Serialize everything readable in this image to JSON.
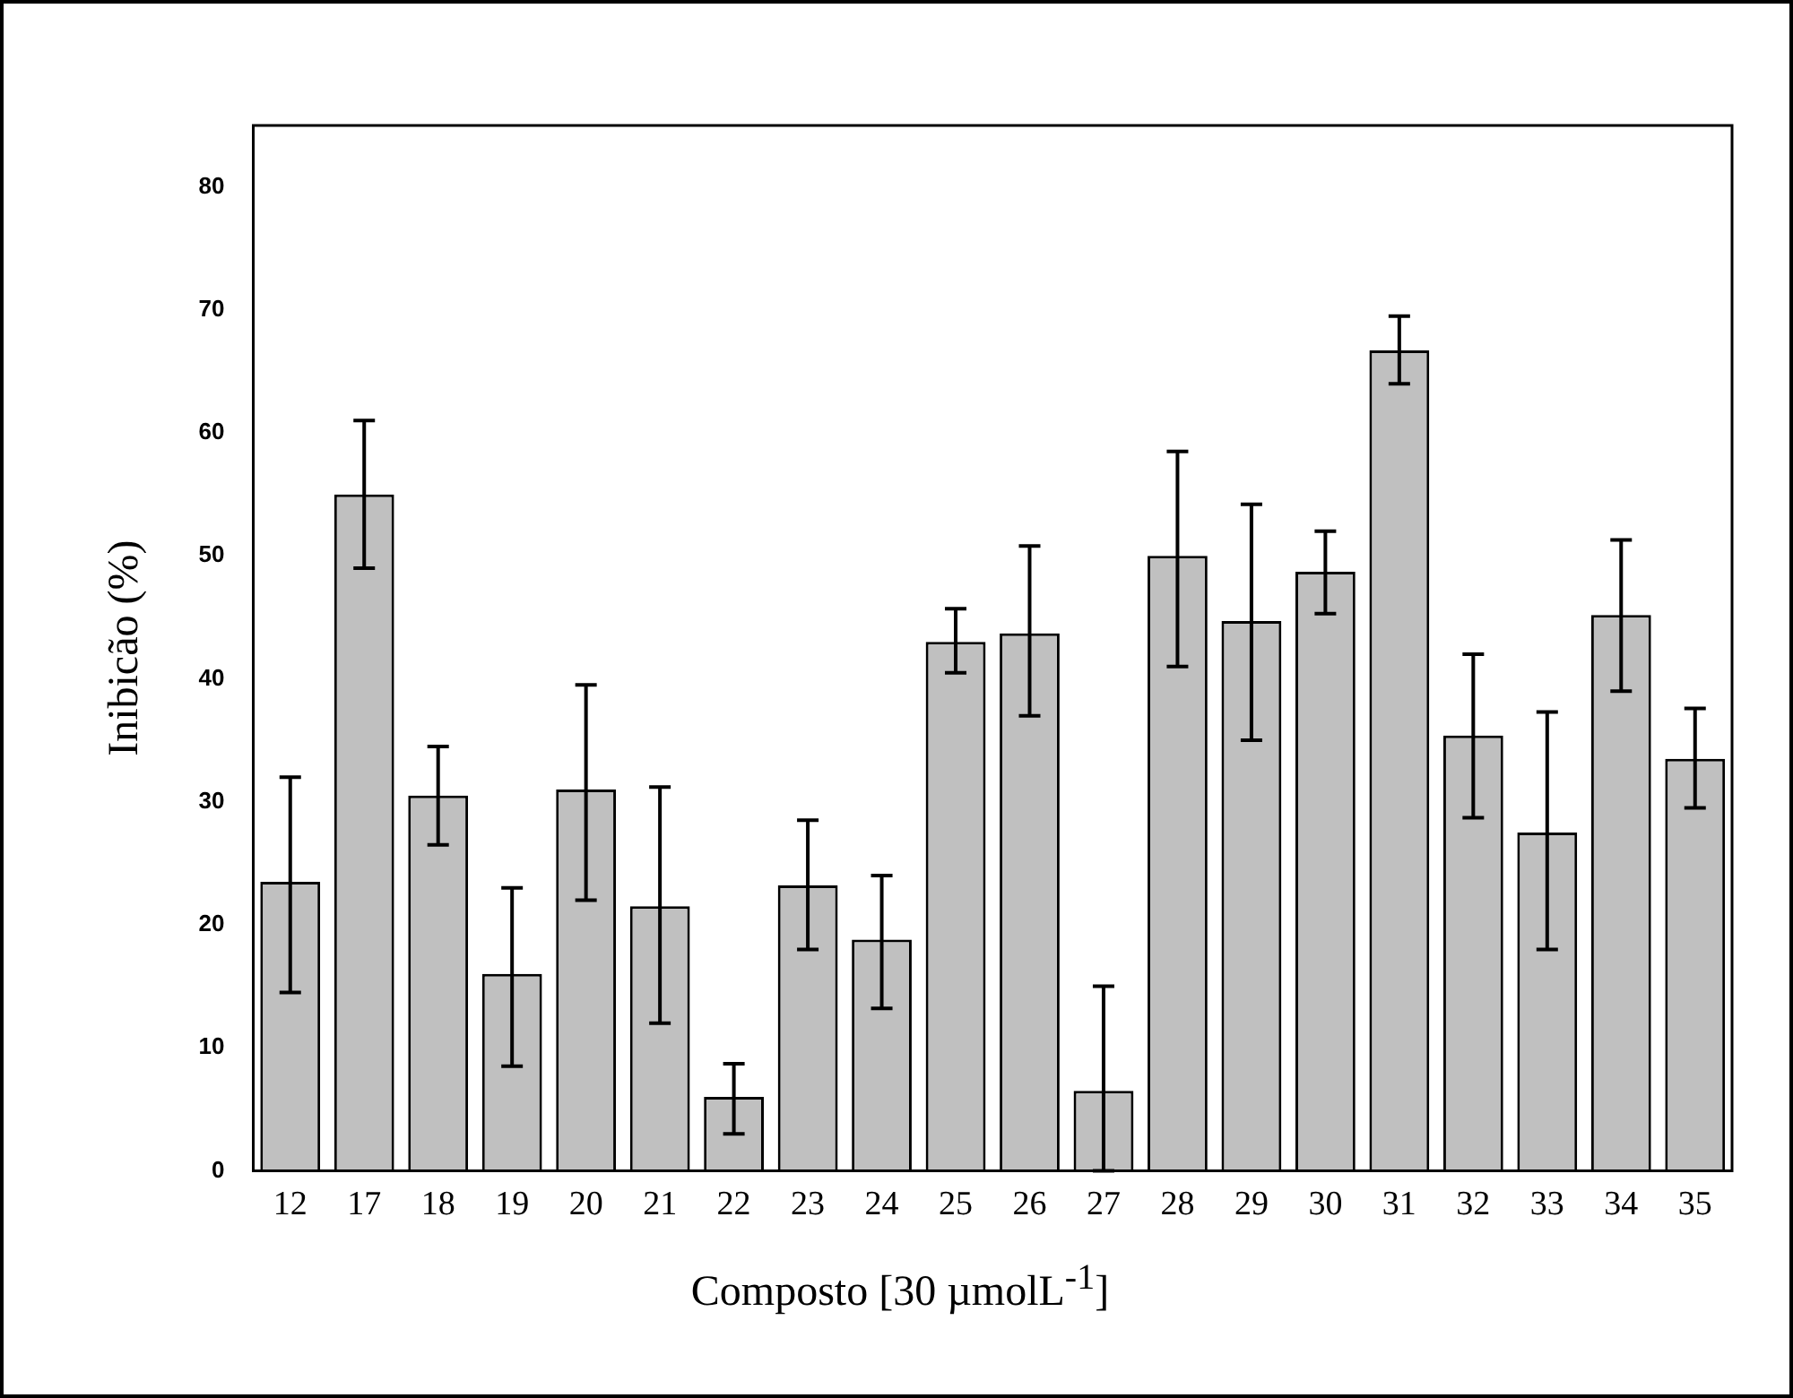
{
  "chart_data": {
    "type": "bar",
    "xlabel": "Composto [30 µmolL$^{-1}$]",
    "ylabel": "Inibicão (%)",
    "categories": [
      "12",
      "17",
      "18",
      "19",
      "20",
      "21",
      "22",
      "23",
      "24",
      "25",
      "26",
      "27",
      "28",
      "29",
      "30",
      "31",
      "32",
      "33",
      "34",
      "35"
    ],
    "values": [
      23.5,
      55,
      30.5,
      16,
      31,
      21.5,
      6,
      23.2,
      18.8,
      43,
      43.7,
      6.5,
      50,
      44.7,
      48.7,
      66.7,
      35.4,
      27.5,
      45.2,
      33.5
    ],
    "errors": [
      [
        14.5,
        32
      ],
      [
        49,
        61
      ],
      [
        26.5,
        34.5
      ],
      [
        8.5,
        23
      ],
      [
        22,
        39.5
      ],
      [
        12,
        31.2
      ],
      [
        3,
        8.7
      ],
      [
        18,
        28.5
      ],
      [
        13.2,
        24
      ],
      [
        40.5,
        45.7
      ],
      [
        37,
        50.8
      ],
      [
        0,
        15
      ],
      [
        41,
        58.5
      ],
      [
        35,
        54.2
      ],
      [
        45.3,
        52
      ],
      [
        64,
        69.5
      ],
      [
        28.7,
        42
      ],
      [
        18,
        37.3
      ],
      [
        39,
        51.3
      ],
      [
        29.5,
        37.6
      ]
    ],
    "color": "#c0c0c0",
    "ylim": [
      0,
      85
    ],
    "yticks": [
      0,
      10,
      20,
      30,
      40,
      50,
      60,
      70,
      80
    ],
    "grid": false,
    "legend": false
  }
}
